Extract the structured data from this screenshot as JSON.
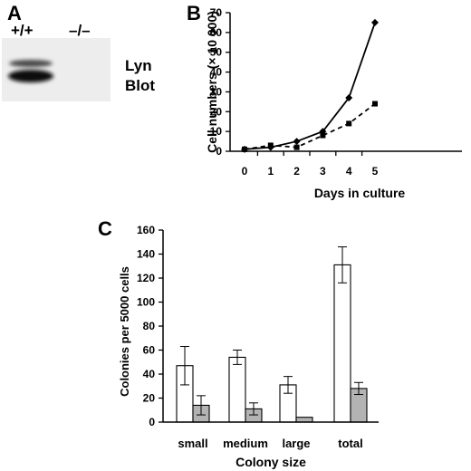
{
  "panels": {
    "a": {
      "letter": "A",
      "lanes": [
        "+/+",
        "–/–"
      ],
      "caption_line1": "Lyn",
      "caption_line2": "Blot"
    },
    "b": {
      "letter": "B"
    },
    "c": {
      "letter": "C"
    }
  },
  "chart_data": [
    {
      "id": "B",
      "type": "line",
      "xlabel": "Days in culture",
      "ylabel": "Cell numbers (× 10 000)",
      "x": [
        0,
        1,
        2,
        3,
        4,
        5
      ],
      "ylim": [
        0,
        70
      ],
      "yticks": [
        0,
        10,
        20,
        30,
        40,
        50,
        60,
        70
      ],
      "grid": false,
      "series": [
        {
          "values": [
            1,
            2,
            5,
            10,
            27,
            65
          ],
          "line": "solid",
          "marker": "diamond"
        },
        {
          "values": [
            1,
            3,
            2,
            8,
            14,
            24
          ],
          "line": "dashed",
          "marker": "square"
        }
      ]
    },
    {
      "id": "C",
      "type": "bar",
      "xlabel": "Colony size",
      "ylabel": "Colonies per 5000 cells",
      "categories": [
        "small",
        "medium",
        "large",
        "total"
      ],
      "ylim": [
        0,
        160
      ],
      "yticks": [
        0,
        20,
        40,
        60,
        80,
        100,
        120,
        140,
        160
      ],
      "grid": false,
      "series": [
        {
          "color": "#ffffff",
          "values": [
            47,
            54,
            31,
            131
          ],
          "errors": [
            16,
            6,
            7,
            15
          ]
        },
        {
          "color": "#b3b3b3",
          "values": [
            14,
            11,
            4,
            28
          ],
          "errors": [
            8,
            5,
            0,
            5
          ]
        }
      ]
    }
  ]
}
